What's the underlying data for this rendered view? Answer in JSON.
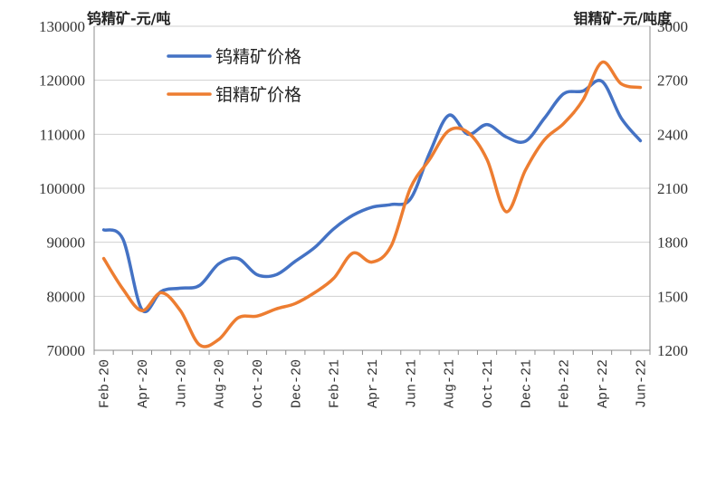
{
  "chart_data": {
    "type": "line",
    "left_axis_title": "钨精矿-元/吨",
    "right_axis_title": "钼精矿-元/吨度",
    "left_axis": {
      "ticks": [
        70000,
        80000,
        90000,
        100000,
        110000,
        120000,
        130000
      ],
      "ylim": [
        70000,
        130000
      ]
    },
    "right_axis": {
      "ticks": [
        1200,
        1500,
        1800,
        2100,
        2400,
        2700,
        3000
      ],
      "ylim": [
        1200,
        3000
      ]
    },
    "x_tick_labels": [
      "Feb-20",
      "Apr-20",
      "Jun-20",
      "Aug-20",
      "Oct-20",
      "Dec-20",
      "Feb-21",
      "Apr-21",
      "Jun-21",
      "Aug-21",
      "Oct-21",
      "Dec-21",
      "Feb-22",
      "Apr-22",
      "Jun-22"
    ],
    "x": [
      "Feb-20",
      "Mar-20",
      "Apr-20",
      "May-20",
      "Jun-20",
      "Jul-20",
      "Aug-20",
      "Sep-20",
      "Oct-20",
      "Nov-20",
      "Dec-20",
      "Jan-21",
      "Feb-21",
      "Mar-21",
      "Apr-21",
      "May-21",
      "Jun-21",
      "Jul-21",
      "Aug-21",
      "Sep-21",
      "Oct-21",
      "Nov-21",
      "Dec-21",
      "Jan-22",
      "Feb-22",
      "Mar-22",
      "Apr-22",
      "May-22",
      "Jun-22"
    ],
    "grid": "horizontal",
    "legend_position": "top-left",
    "series": [
      {
        "name": "钨精矿价格",
        "axis": "left",
        "color": "#4472c4",
        "values": [
          92300,
          90600,
          77500,
          80900,
          81500,
          82000,
          86000,
          87000,
          84000,
          84000,
          86500,
          89000,
          92500,
          95000,
          96500,
          97000,
          98000,
          106500,
          113500,
          110000,
          111800,
          109500,
          108700,
          113000,
          117500,
          118000,
          119800,
          113000,
          108800
        ]
      },
      {
        "name": "钼精矿价格",
        "axis": "left",
        "right_axis_values": [
          1710,
          1540,
          1420,
          1520,
          1420,
          1230,
          1260,
          1380,
          1390,
          1430,
          1460,
          1520,
          1600,
          1740,
          1690,
          1780,
          2100,
          2260,
          2420,
          2410,
          2260,
          1970,
          2200,
          2370,
          2460,
          2590,
          2800,
          2680,
          2660
        ]
      }
    ]
  }
}
